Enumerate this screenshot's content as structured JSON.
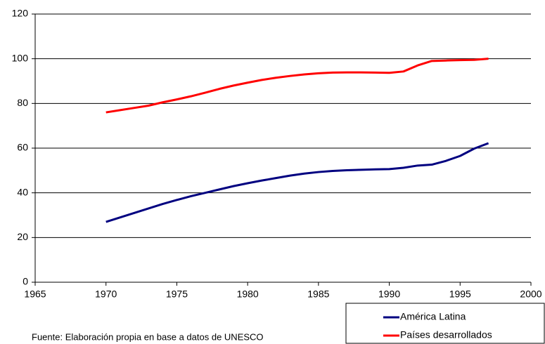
{
  "chart_data": {
    "type": "line",
    "x": [
      1970,
      1971,
      1972,
      1973,
      1974,
      1975,
      1976,
      1977,
      1978,
      1979,
      1980,
      1981,
      1982,
      1983,
      1984,
      1985,
      1986,
      1987,
      1988,
      1989,
      1990,
      1991,
      1992,
      1993,
      1994,
      1995,
      1996,
      1997
    ],
    "series": [
      {
        "name": "América Latina",
        "color": "#000080",
        "values": [
          27,
          29,
          31,
          33,
          35,
          36.8,
          38.5,
          40,
          41.5,
          43,
          44.3,
          45.5,
          46.6,
          47.7,
          48.6,
          49.3,
          49.8,
          50.1,
          50.3,
          50.5,
          50.6,
          51.2,
          52.2,
          52.6,
          54.3,
          56.5,
          59.8,
          62.2
        ]
      },
      {
        "name": "Países desarrollados",
        "color": "#ff0000",
        "values": [
          76,
          77,
          78,
          79,
          80.5,
          81.8,
          83.2,
          84.8,
          86.5,
          88,
          89.3,
          90.5,
          91.5,
          92.3,
          93,
          93.5,
          93.8,
          93.9,
          93.9,
          93.8,
          93.7,
          94.3,
          97,
          99,
          99.2,
          99.4,
          99.5,
          100
        ]
      }
    ],
    "xlim": [
      1965,
      2000
    ],
    "xticks": [
      1965,
      1970,
      1975,
      1980,
      1985,
      1990,
      1995,
      2000
    ],
    "ylim": [
      0,
      120
    ],
    "yticks": [
      0,
      20,
      40,
      60,
      80,
      100,
      120
    ],
    "grid": true,
    "note": "Fuente: Elaboración propia en base a datos de UNESCO"
  }
}
